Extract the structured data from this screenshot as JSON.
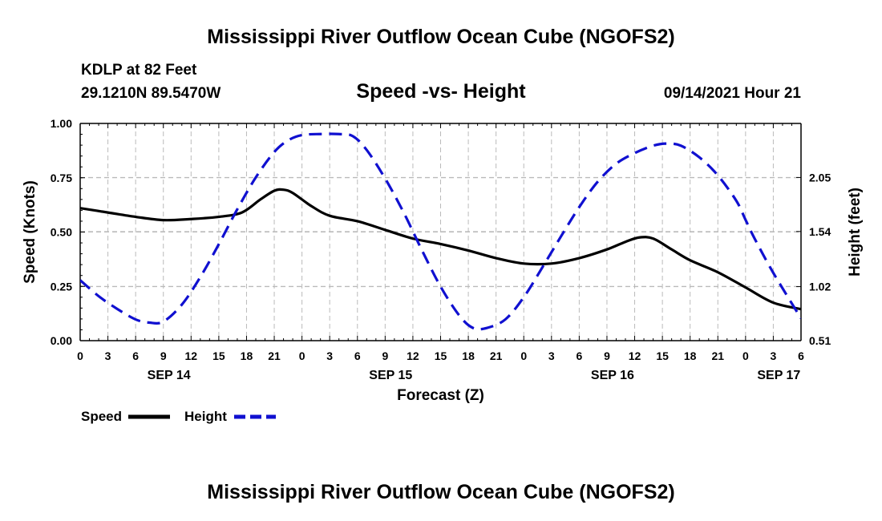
{
  "title_top": "Mississippi River Outflow Ocean Cube (NGOFS2)",
  "title_bottom": "Mississippi River Outflow Ocean Cube (NGOFS2)",
  "station": "KDLP at 82 Feet",
  "coords": "29.1210N  89.5470W",
  "subtitle": "Speed -vs- Height",
  "datetime": "09/14/2021 Hour 21",
  "colors": {
    "speed": "#000000",
    "height": "#1010d0",
    "grid": "#bbbbbb"
  },
  "chart_data": {
    "type": "line",
    "title": "Speed -vs- Height",
    "xlabel": "Forecast (Z)",
    "ylabel": "Speed (Knots)",
    "y2label": "Height (feet)",
    "x_range_hours": [
      0,
      78
    ],
    "ylim": [
      0,
      1
    ],
    "y2lim": [
      0.51,
      2.56
    ],
    "x_ticks": [
      {
        "h": 0,
        "label": "0"
      },
      {
        "h": 3,
        "label": "3"
      },
      {
        "h": 6,
        "label": "6"
      },
      {
        "h": 9,
        "label": "9"
      },
      {
        "h": 12,
        "label": "12"
      },
      {
        "h": 15,
        "label": "15"
      },
      {
        "h": 18,
        "label": "18"
      },
      {
        "h": 21,
        "label": "21"
      },
      {
        "h": 24,
        "label": "0"
      },
      {
        "h": 27,
        "label": "3"
      },
      {
        "h": 30,
        "label": "6"
      },
      {
        "h": 33,
        "label": "9"
      },
      {
        "h": 36,
        "label": "12"
      },
      {
        "h": 39,
        "label": "15"
      },
      {
        "h": 42,
        "label": "18"
      },
      {
        "h": 45,
        "label": "21"
      },
      {
        "h": 48,
        "label": "0"
      },
      {
        "h": 51,
        "label": "3"
      },
      {
        "h": 54,
        "label": "6"
      },
      {
        "h": 57,
        "label": "9"
      },
      {
        "h": 60,
        "label": "12"
      },
      {
        "h": 63,
        "label": "15"
      },
      {
        "h": 66,
        "label": "18"
      },
      {
        "h": 69,
        "label": "21"
      },
      {
        "h": 72,
        "label": "0"
      },
      {
        "h": 75,
        "label": "3"
      },
      {
        "h": 78,
        "label": "6"
      }
    ],
    "day_labels": [
      {
        "h": 9.6,
        "label": "SEP 14"
      },
      {
        "h": 33.6,
        "label": "SEP 15"
      },
      {
        "h": 57.6,
        "label": "SEP 16"
      },
      {
        "h": 75.6,
        "label": "SEP 17"
      }
    ],
    "y_ticks": [
      {
        "v": 0.0,
        "label": "0.00"
      },
      {
        "v": 0.25,
        "label": "0.25"
      },
      {
        "v": 0.5,
        "label": "0.50"
      },
      {
        "v": 0.75,
        "label": "0.75"
      },
      {
        "v": 1.0,
        "label": "1.00"
      }
    ],
    "y2_ticks": [
      {
        "v": 0.51,
        "label": "0.51"
      },
      {
        "v": 1.02,
        "label": "1.02"
      },
      {
        "v": 1.54,
        "label": "1.54"
      },
      {
        "v": 2.05,
        "label": "2.05"
      }
    ],
    "series": [
      {
        "name": "Speed",
        "axis": "left",
        "style": "solid",
        "x": [
          0,
          3,
          6,
          9,
          12,
          15,
          17.5,
          19.5,
          21,
          22,
          23,
          25,
          27,
          30,
          33,
          36,
          39,
          42,
          45,
          48,
          51,
          54,
          57,
          59,
          60.5,
          62,
          64,
          66,
          69,
          72,
          75,
          78
        ],
        "values": [
          0.61,
          0.59,
          0.57,
          0.555,
          0.56,
          0.57,
          0.59,
          0.65,
          0.69,
          0.695,
          0.68,
          0.62,
          0.575,
          0.55,
          0.51,
          0.47,
          0.445,
          0.415,
          0.38,
          0.355,
          0.355,
          0.38,
          0.42,
          0.455,
          0.475,
          0.47,
          0.42,
          0.37,
          0.315,
          0.245,
          0.175,
          0.145
        ]
      },
      {
        "name": "Height",
        "axis": "right",
        "style": "dashed",
        "x": [
          0,
          2,
          4,
          6,
          7.5,
          9,
          11,
          13,
          15,
          17,
          19,
          21,
          22.5,
          24,
          26,
          28,
          29.5,
          31,
          33,
          35,
          37,
          39,
          41,
          42.5,
          44,
          46,
          48,
          50,
          52,
          54,
          56,
          58,
          60,
          62,
          63.5,
          65,
          67,
          69,
          71,
          72,
          73,
          75,
          78
        ],
        "values": [
          1.08,
          0.93,
          0.81,
          0.71,
          0.68,
          0.69,
          0.85,
          1.11,
          1.42,
          1.75,
          2.05,
          2.29,
          2.4,
          2.45,
          2.46,
          2.46,
          2.44,
          2.31,
          2.04,
          1.72,
          1.36,
          1.02,
          0.75,
          0.63,
          0.63,
          0.71,
          0.92,
          1.2,
          1.49,
          1.77,
          2.01,
          2.18,
          2.28,
          2.35,
          2.37,
          2.35,
          2.24,
          2.07,
          1.83,
          1.65,
          1.47,
          1.15,
          0.72
        ]
      }
    ],
    "legend": [
      {
        "name": "Speed",
        "style": "solid"
      },
      {
        "name": "Height",
        "style": "dashed"
      }
    ],
    "legend_placement": "bottom-left"
  }
}
